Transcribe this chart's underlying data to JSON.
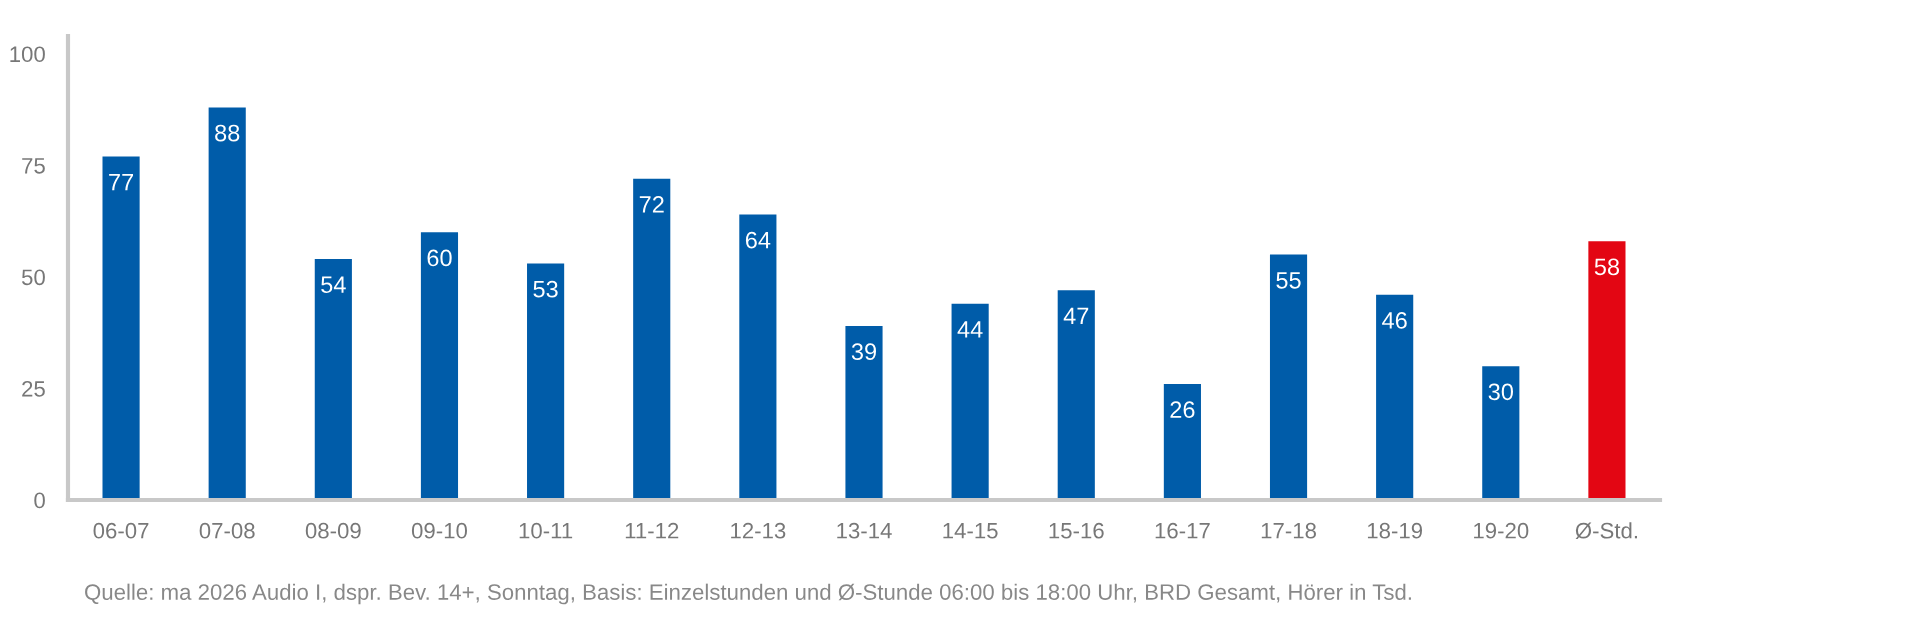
{
  "chart_data": {
    "type": "bar",
    "categories": [
      "06-07",
      "07-08",
      "08-09",
      "09-10",
      "10-11",
      "11-12",
      "12-13",
      "13-14",
      "14-15",
      "15-16",
      "16-17",
      "17-18",
      "18-19",
      "19-20",
      "Ø-Std."
    ],
    "values": [
      77,
      88,
      54,
      60,
      53,
      72,
      64,
      39,
      44,
      47,
      26,
      55,
      46,
      30,
      58
    ],
    "colors": [
      "#005ca9",
      "#005ca9",
      "#005ca9",
      "#005ca9",
      "#005ca9",
      "#005ca9",
      "#005ca9",
      "#005ca9",
      "#005ca9",
      "#005ca9",
      "#005ca9",
      "#005ca9",
      "#005ca9",
      "#005ca9",
      "#e30613"
    ],
    "ylim": [
      0,
      104
    ],
    "yticks": [
      0,
      25,
      50,
      75,
      100
    ],
    "grid": false,
    "data_labels": true,
    "annotations": [
      "Quelle: ma 2026 Audio I, dspr. Bev. 14+, Sonntag, Basis: Einzelstunden und Ø-Stunde 06:00 bis 18:00 Uhr, BRD Gesamt, Hörer in Tsd."
    ]
  }
}
